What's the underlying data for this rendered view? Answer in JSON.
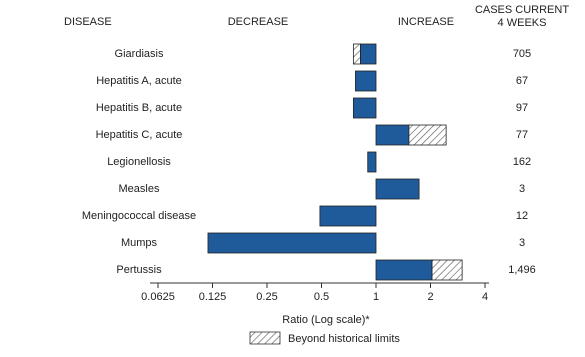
{
  "chart_data": {
    "type": "bar",
    "orientation": "horizontal",
    "log_scale": true,
    "disease_header": "DISEASE",
    "decrease_label": "DECREASE",
    "increase_label": "INCREASE",
    "cases_header": [
      "CASES CURRENT",
      "4 WEEKS"
    ],
    "categories": [
      "Giardiasis",
      "Hepatitis A, acute",
      "Hepatitis B, acute",
      "Hepatitis C, acute",
      "Legionellosis",
      "Measles",
      "Meningococcal disease",
      "Mumps",
      "Pertussis"
    ],
    "values": [
      0.75,
      0.77,
      0.75,
      2.44,
      0.9,
      1.73,
      0.49,
      0.118,
      2.99
    ],
    "limits": [
      0.82,
      null,
      null,
      1.52,
      null,
      null,
      null,
      null,
      2.04
    ],
    "cases": [
      705,
      67,
      97,
      77,
      162,
      3,
      12,
      3,
      1496
    ],
    "cases_labels": [
      "705",
      "67",
      "97",
      "77",
      "162",
      "3",
      "12",
      "3",
      "1,496"
    ],
    "color": "#1f5b9b",
    "xlim": [
      0.0625,
      4
    ],
    "xticks": [
      0.0625,
      0.125,
      0.25,
      0.5,
      1,
      2,
      4
    ],
    "xlabel": "Ratio (Log scale)*",
    "legend_label": "Beyond historical limits"
  }
}
